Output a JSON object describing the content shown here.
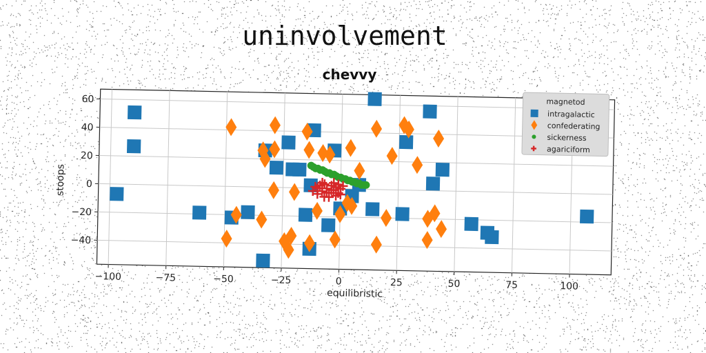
{
  "suptitle": "uninvolvement",
  "chart_data": {
    "type": "scatter",
    "title": "chevvy",
    "xlabel": "equilibristic",
    "ylabel": "stoops",
    "xlim": [
      -105,
      118
    ],
    "ylim": [
      -57,
      67
    ],
    "xticks": [
      -100,
      -75,
      -50,
      -25,
      0,
      25,
      50,
      75,
      100
    ],
    "yticks": [
      -40,
      -20,
      0,
      20,
      40,
      60
    ],
    "grid": true,
    "legend": {
      "title": "magnetod",
      "placement": "top-right"
    },
    "series": [
      {
        "name": "intragalactic",
        "marker": "square",
        "color": "#1f77b4",
        "points": [
          [
            -90,
            51
          ],
          [
            -90,
            27
          ],
          [
            -97,
            -7
          ],
          [
            -61,
            -19
          ],
          [
            -47,
            -22
          ],
          [
            -40,
            -18
          ],
          [
            -33,
            -52
          ],
          [
            -33,
            26
          ],
          [
            -28,
            14
          ],
          [
            -23,
            32
          ],
          [
            -21,
            13
          ],
          [
            -18,
            13
          ],
          [
            -15,
            -19
          ],
          [
            -13,
            -43
          ],
          [
            -13,
            2
          ],
          [
            -12,
            41
          ],
          [
            -5,
            -26
          ],
          [
            -3,
            27
          ],
          [
            0,
            -14
          ],
          [
            5,
            -5
          ],
          [
            8,
            3
          ],
          [
            14,
            -14
          ],
          [
            14,
            64
          ],
          [
            27,
            -17
          ],
          [
            28,
            34
          ],
          [
            38,
            56
          ],
          [
            40,
            5
          ],
          [
            44,
            15
          ],
          [
            57,
            -23
          ],
          [
            64,
            -29
          ],
          [
            66,
            -32
          ],
          [
            107,
            -16
          ]
        ]
      },
      {
        "name": "confederating",
        "marker": "diamond",
        "color": "#ff7f0e",
        "points": [
          [
            -48,
            42
          ],
          [
            -45,
            -20
          ],
          [
            -49,
            -37
          ],
          [
            -34,
            26
          ],
          [
            -33,
            20
          ],
          [
            -34,
            -23
          ],
          [
            -29,
            44
          ],
          [
            -29,
            27
          ],
          [
            -29,
            -2
          ],
          [
            -24,
            -38
          ],
          [
            -22,
            -44
          ],
          [
            -21,
            -34
          ],
          [
            -20,
            -3
          ],
          [
            -15,
            40
          ],
          [
            -14,
            27
          ],
          [
            -13,
            -39
          ],
          [
            -10,
            -16
          ],
          [
            -8,
            25
          ],
          [
            -5,
            24
          ],
          [
            -2,
            -36
          ],
          [
            0,
            -18
          ],
          [
            3,
            -10
          ],
          [
            4,
            29
          ],
          [
            5,
            -12
          ],
          [
            8,
            13
          ],
          [
            15,
            43
          ],
          [
            16,
            -39
          ],
          [
            20,
            -20
          ],
          [
            22,
            24
          ],
          [
            27,
            46
          ],
          [
            29,
            43
          ],
          [
            33,
            18
          ],
          [
            38,
            -20
          ],
          [
            38,
            -35
          ],
          [
            41,
            -16
          ],
          [
            42,
            37
          ],
          [
            44,
            -27
          ]
        ]
      },
      {
        "name": "sickerness",
        "marker": "circle",
        "color": "#2ca02c",
        "points": [
          [
            -13,
            16
          ],
          [
            -12,
            15
          ],
          [
            -11,
            14
          ],
          [
            -10,
            14
          ],
          [
            -9,
            13
          ],
          [
            -8,
            13
          ],
          [
            -7,
            12
          ],
          [
            -6,
            11
          ],
          [
            -5,
            11
          ],
          [
            -4,
            10
          ],
          [
            -3,
            10
          ],
          [
            -2,
            9
          ],
          [
            -1,
            8
          ],
          [
            0,
            8
          ],
          [
            1,
            7
          ],
          [
            2,
            7
          ],
          [
            3,
            6
          ],
          [
            4,
            6
          ],
          [
            5,
            5
          ],
          [
            6,
            5
          ],
          [
            7,
            4
          ],
          [
            8,
            4
          ],
          [
            9,
            3
          ],
          [
            10,
            3
          ],
          [
            11,
            3
          ]
        ]
      },
      {
        "name": "agariciform",
        "marker": "plus",
        "color": "#d62728",
        "points": [
          [
            -11,
            1
          ],
          [
            -10,
            -4
          ],
          [
            -9,
            2
          ],
          [
            -8,
            -2
          ],
          [
            -7,
            -6
          ],
          [
            -7,
            3
          ],
          [
            -6,
            0
          ],
          [
            -5,
            -3
          ],
          [
            -4,
            2
          ],
          [
            -3,
            -1
          ],
          [
            -2,
            1
          ],
          [
            -2,
            -5
          ],
          [
            -1,
            -3
          ],
          [
            0,
            0
          ],
          [
            1,
            2
          ],
          [
            -8,
            4
          ],
          [
            -5,
            -6
          ],
          [
            -3,
            4
          ],
          [
            -10,
            0
          ],
          [
            -6,
            -3
          ],
          [
            0,
            -4
          ],
          [
            -12,
            -2
          ],
          [
            -4,
            -1
          ],
          [
            -1,
            3
          ]
        ]
      }
    ]
  }
}
